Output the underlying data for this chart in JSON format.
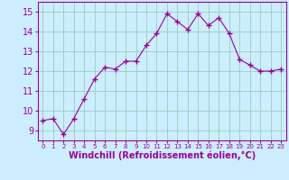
{
  "x": [
    0,
    1,
    2,
    3,
    4,
    5,
    6,
    7,
    8,
    9,
    10,
    11,
    12,
    13,
    14,
    15,
    16,
    17,
    18,
    19,
    20,
    21,
    22,
    23
  ],
  "y": [
    9.5,
    9.6,
    8.8,
    9.6,
    10.6,
    11.6,
    12.2,
    12.1,
    12.5,
    12.5,
    13.3,
    13.9,
    14.9,
    14.5,
    14.1,
    14.9,
    14.3,
    14.7,
    13.9,
    12.6,
    12.3,
    12.0,
    12.0,
    12.1
  ],
  "line_color": "#990099",
  "marker": "+",
  "marker_size": 4,
  "bg_color": "#cceeff",
  "grid_color": "#99ccbb",
  "xlabel": "Windchill (Refroidissement éolien,°C)",
  "xlabel_color": "#990099",
  "tick_color": "#990099",
  "ylim": [
    8.5,
    15.5
  ],
  "xlim": [
    -0.5,
    23.5
  ],
  "yticks": [
    9,
    10,
    11,
    12,
    13,
    14,
    15
  ],
  "xtick_labels": [
    "0",
    "1",
    "2",
    "3",
    "4",
    "5",
    "6",
    "7",
    "8",
    "9",
    "10",
    "11",
    "12",
    "13",
    "14",
    "15",
    "16",
    "17",
    "18",
    "19",
    "20",
    "21",
    "22",
    "23"
  ],
  "ylabel_fontsize": 7,
  "xlabel_fontsize": 7,
  "xtick_fontsize": 5,
  "ytick_fontsize": 7
}
